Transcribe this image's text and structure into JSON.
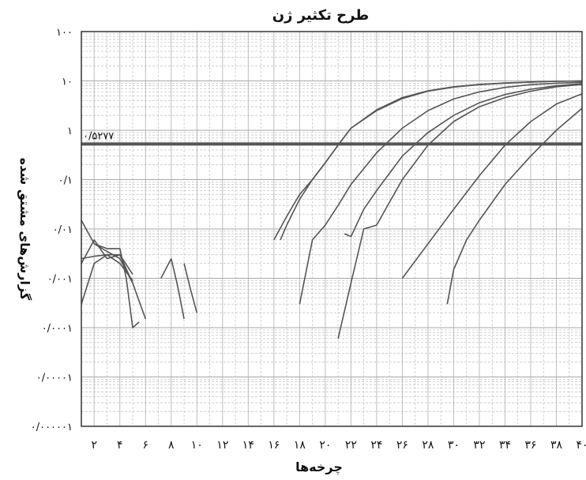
{
  "chart_data": {
    "type": "line",
    "title": "طرح تکثیر ژن",
    "xlabel": "چرخه‌ها",
    "ylabel": "گزارش‌های مشتق شده",
    "y_scale": "log",
    "xlim": [
      1,
      40
    ],
    "ylim": [
      1e-06,
      100
    ],
    "grid": true,
    "x_tick_labels": [
      "۲",
      "۴",
      "۶",
      "۸",
      "۱۰",
      "۱۲",
      "۱۴",
      "۱۶",
      "۱۸",
      "۲۰",
      "۲۲",
      "۲۴",
      "۲۶",
      "۲۸",
      "۳۰",
      "۳۲",
      "۳۴",
      "۳۶",
      "۳۸",
      "۴۰"
    ],
    "y_tick_labels": [
      "۱۰۰",
      "۱۰",
      "۱",
      "۰/۱",
      "۰/۰۱",
      "۰/۰۰۱",
      "۰/۰۰۰۱",
      "۰/۰۰۰۰۱",
      "۰/۰۰۰۰۰۱"
    ],
    "threshold": {
      "value": 0.5277,
      "label": "۰/۵۲۷۷"
    },
    "series": [
      {
        "x": [
          1,
          2,
          3,
          4,
          5,
          6
        ],
        "y": [
          0.015,
          0.005,
          0.0035,
          0.0025,
          0.0008,
          0.00015
        ]
      },
      {
        "x": [
          1,
          2,
          3,
          4,
          5
        ],
        "y": [
          0.0003,
          0.002,
          0.003,
          0.002,
          0.0009
        ]
      },
      {
        "x": [
          1,
          2,
          3,
          4,
          5
        ],
        "y": [
          0.002,
          0.006,
          0.0025,
          0.003,
          0.0012
        ]
      },
      {
        "x": [
          1,
          2,
          3,
          4,
          5
        ],
        "y": [
          0.0025,
          0.0028,
          0.003,
          0.003,
          0.0008
        ]
      },
      {
        "x": [
          2,
          3,
          4,
          4.5,
          5,
          5.5
        ],
        "y": [
          0.005,
          0.004,
          0.004,
          0.001,
          0.0001,
          0.00013
        ]
      },
      {
        "x": [
          7.2,
          8
        ],
        "y": [
          0.001,
          0.0025
        ]
      },
      {
        "x": [
          8,
          8.5,
          9
        ],
        "y": [
          0.0025,
          0.0007,
          0.00015
        ]
      },
      {
        "x": [
          9,
          9.5,
          10
        ],
        "y": [
          0.002,
          0.0006,
          0.0002
        ]
      },
      {
        "x": [
          16,
          17,
          18,
          19,
          20,
          21,
          22,
          24,
          26,
          28,
          30,
          32,
          34,
          36,
          38,
          40
        ],
        "y": [
          0.006,
          0.018,
          0.05,
          0.1,
          0.22,
          0.5,
          1.1,
          2.6,
          4.6,
          6.3,
          7.6,
          8.5,
          9.1,
          9.5,
          9.8,
          10
        ]
      },
      {
        "x": [
          16.5,
          17,
          18,
          19,
          20,
          21,
          22,
          24,
          26,
          28,
          30,
          32,
          34,
          36,
          38,
          40
        ],
        "y": [
          0.006,
          0.012,
          0.04,
          0.1,
          0.22,
          0.5,
          1.1,
          2.5,
          4.4,
          6.2,
          7.5,
          8.4,
          9.0,
          9.5,
          9.8,
          10
        ]
      },
      {
        "x": [
          18,
          19,
          20,
          21,
          22,
          24,
          26,
          28,
          30,
          32,
          34,
          36,
          38,
          40
        ],
        "y": [
          0.0003,
          0.006,
          0.012,
          0.03,
          0.08,
          0.35,
          1.1,
          2.5,
          4.3,
          6.0,
          7.4,
          8.4,
          9.0,
          9.4
        ]
      },
      {
        "x": [
          21.5,
          22,
          23,
          24,
          26,
          28,
          30,
          32,
          34,
          36,
          38,
          40
        ],
        "y": [
          0.008,
          0.007,
          0.025,
          0.06,
          0.3,
          0.9,
          2.0,
          3.6,
          5.3,
          6.8,
          8.0,
          8.8
        ]
      },
      {
        "x": [
          21,
          22,
          23,
          24,
          26,
          28,
          30,
          32,
          34,
          36,
          38,
          40
        ],
        "y": [
          6e-05,
          0.0008,
          0.01,
          0.012,
          0.1,
          0.5,
          1.5,
          3.0,
          4.6,
          6.2,
          7.6,
          8.5
        ]
      },
      {
        "x": [
          26,
          28,
          30,
          32,
          34,
          36,
          38,
          40
        ],
        "y": [
          0.001,
          0.005,
          0.025,
          0.12,
          0.5,
          1.5,
          3.4,
          5.5
        ]
      },
      {
        "x": [
          29.5,
          30,
          31,
          32,
          34,
          36,
          38,
          40
        ],
        "y": [
          0.0003,
          0.0015,
          0.006,
          0.015,
          0.08,
          0.3,
          1.0,
          2.8
        ]
      }
    ]
  }
}
